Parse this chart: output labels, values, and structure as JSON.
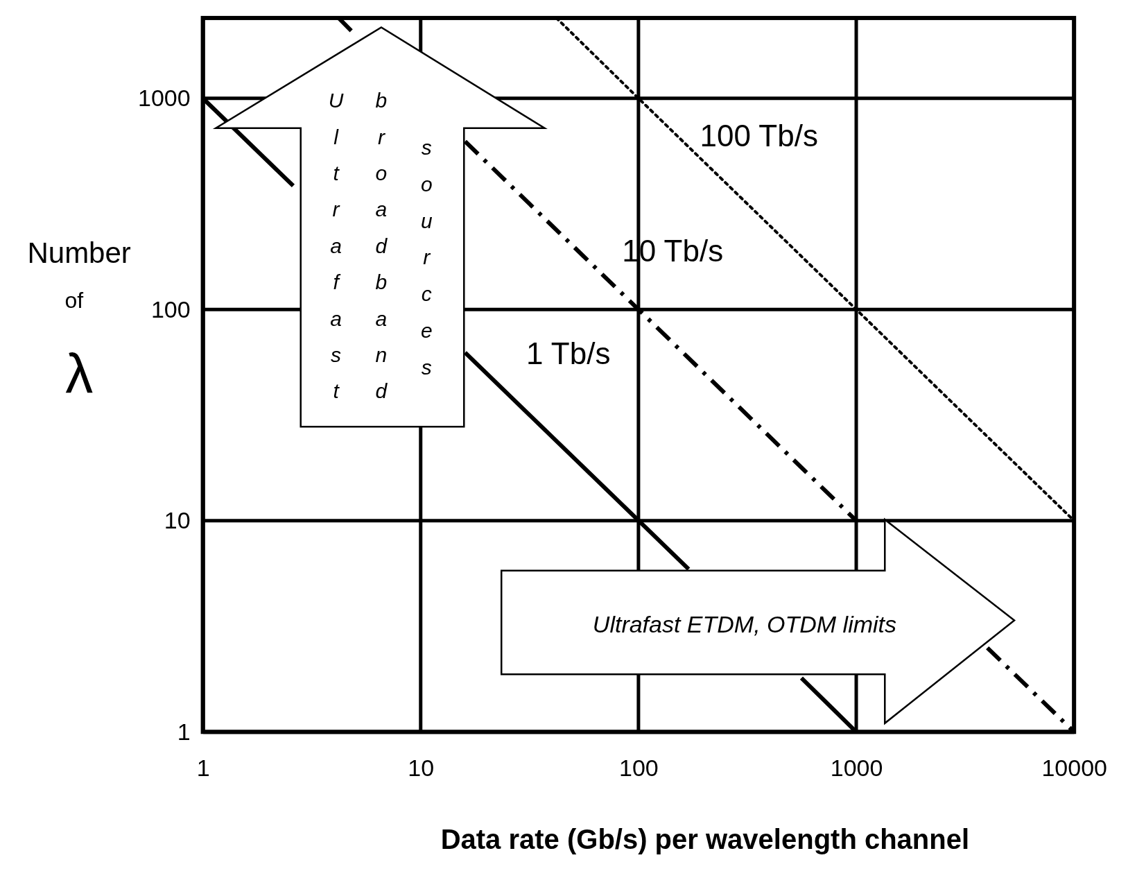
{
  "chart_data": {
    "type": "line",
    "xlabel": "Data rate (Gb/s) per wavelength channel",
    "ylabel": "Number of λ",
    "log": "xy",
    "xlim": [
      1,
      10000
    ],
    "ylim": [
      1,
      2400
    ],
    "xticks": [
      1,
      10,
      100,
      1000,
      10000
    ],
    "yticks": [
      1,
      10,
      100,
      1000
    ],
    "grid": true,
    "legend": false,
    "series": [
      {
        "name": "1 Tb/s",
        "color": "#000000",
        "line_style": "solid",
        "x": [
          1,
          2.6,
          8,
          16,
          170,
          400,
          560,
          1000
        ],
        "values": [
          1000,
          385,
          null,
          62.5,
          5.9,
          null,
          1.8,
          1
        ]
      },
      {
        "name": "10 Tb/s",
        "color": "#000000",
        "line_style": "dashdot",
        "x": [
          4.2,
          5,
          8,
          16,
          100,
          1000,
          2000,
          4000,
          10000
        ],
        "values": [
          2400,
          2000,
          null,
          625,
          100,
          10,
          null,
          2.5,
          1
        ]
      },
      {
        "name": "100 Tb/s",
        "color": "#000000",
        "line_style": "dotted",
        "x": [
          42,
          100,
          1000,
          10000
        ],
        "values": [
          2400,
          1000,
          100,
          10
        ]
      }
    ],
    "annotations": [
      "Ultrafast",
      "broadband",
      "sources",
      "Ultrafast ETDM, OTDM limits"
    ]
  }
}
